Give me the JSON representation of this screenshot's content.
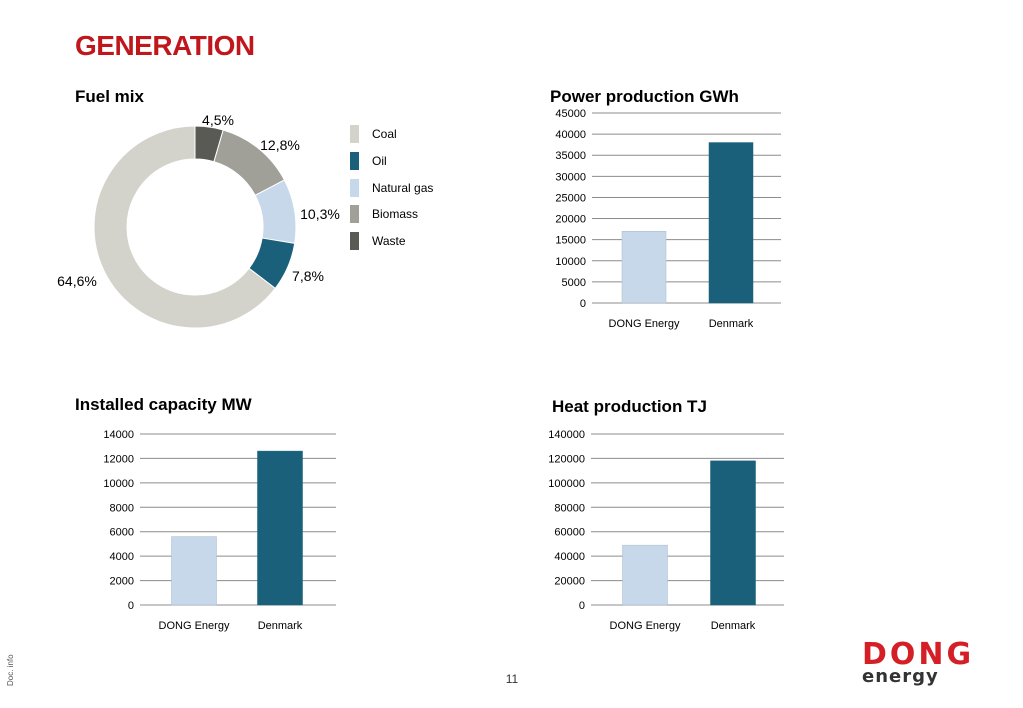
{
  "page": {
    "title": "GENERATION",
    "doc_info": "Doc. info",
    "page_number": "11",
    "logo": {
      "top": "DONG",
      "bottom": "energy"
    }
  },
  "colors": {
    "title": "#c0171d",
    "coal": "#d3d3cb",
    "oil": "#1b607a",
    "natural_gas": "#c7d8ea",
    "biomass": "#a0a099",
    "waste": "#5a5a55",
    "dong_energy_bar": "#c7d8ea",
    "denmark_bar": "#1b607a",
    "gridline": "#8c8c8c",
    "logo_red": "#d41f26"
  },
  "chart_data": [
    {
      "type": "pie",
      "title": "Fuel mix",
      "donut": true,
      "legend_position": "right",
      "slices": [
        {
          "name": "Coal",
          "value": 64.6,
          "label": "64,6%",
          "color": "#d3d3cb"
        },
        {
          "name": "Oil",
          "value": 7.8,
          "label": "7,8%",
          "color": "#1b607a"
        },
        {
          "name": "Natural gas",
          "value": 10.3,
          "label": "10,3%",
          "color": "#c7d8ea"
        },
        {
          "name": "Biomass",
          "value": 12.8,
          "label": "12,8%",
          "color": "#a0a099"
        },
        {
          "name": "Waste",
          "value": 4.5,
          "label": "4,5%",
          "color": "#5a5a55"
        }
      ]
    },
    {
      "type": "bar",
      "title": "Power production GWh",
      "categories": [
        "DONG Energy",
        "Denmark"
      ],
      "values": [
        17000,
        38000
      ],
      "colors": [
        "#c7d8ea",
        "#1b607a"
      ],
      "ylim": [
        0,
        45000
      ],
      "yticks": [
        "0",
        "5000",
        "10000",
        "15000",
        "20000",
        "25000",
        "30000",
        "35000",
        "40000",
        "45000"
      ],
      "grid": true
    },
    {
      "type": "bar",
      "title": "Installed capacity MW",
      "categories": [
        "DONG Energy",
        "Denmark"
      ],
      "values": [
        5600,
        12600
      ],
      "colors": [
        "#c7d8ea",
        "#1b607a"
      ],
      "ylim": [
        0,
        14000
      ],
      "yticks": [
        "0",
        "2000",
        "4000",
        "6000",
        "8000",
        "10000",
        "12000",
        "14000"
      ],
      "grid": true
    },
    {
      "type": "bar",
      "title": "Heat production TJ",
      "categories": [
        "DONG Energy",
        "Denmark"
      ],
      "values": [
        49000,
        118000
      ],
      "colors": [
        "#c7d8ea",
        "#1b607a"
      ],
      "ylim": [
        0,
        140000
      ],
      "yticks": [
        "0",
        "20000",
        "40000",
        "60000",
        "80000",
        "100000",
        "120000",
        "140000"
      ],
      "grid": true
    }
  ]
}
